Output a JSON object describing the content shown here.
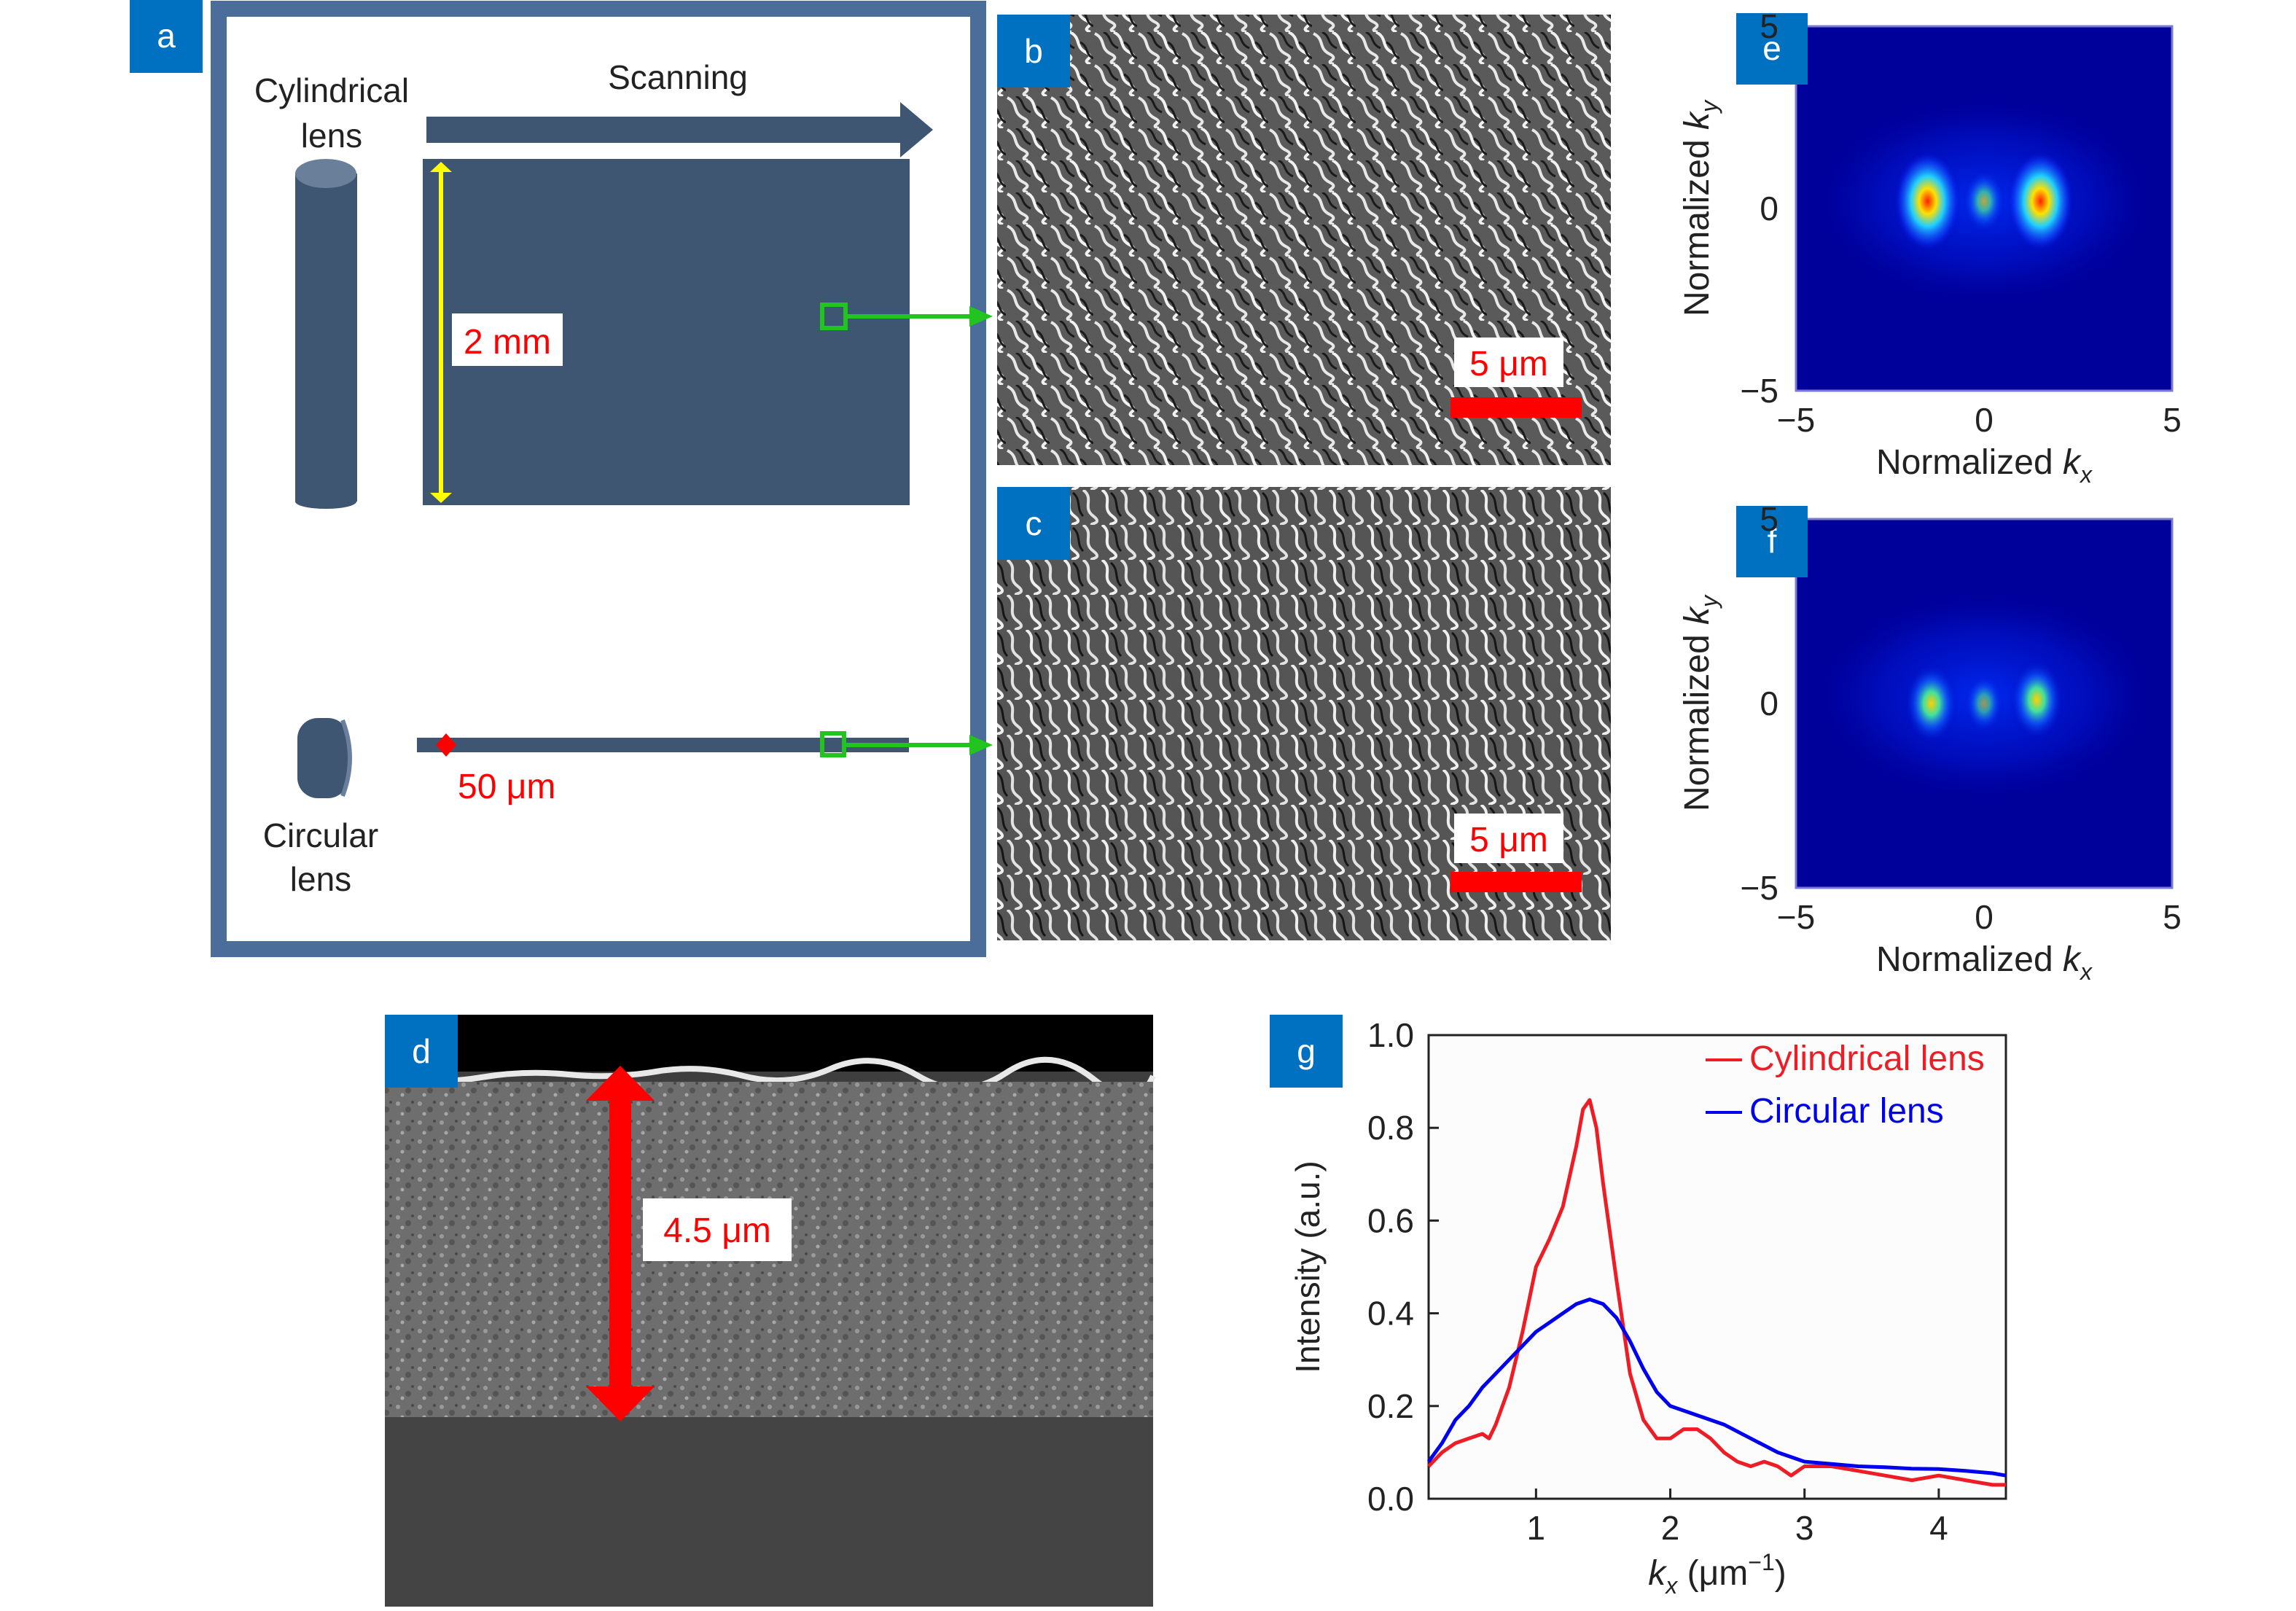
{
  "colors": {
    "panel_tag": "#0070c0",
    "frame": "#4a6d9a",
    "lens": "#3f5673",
    "accent_red": "#ff0000",
    "scan_green": "#22c51e",
    "yellow": "#ffff00",
    "sem_bg": "#8a8a8a",
    "fft_bg": "#00009a",
    "cyl_line": "#ee1c24",
    "circ_line": "#0000ee"
  },
  "panels": {
    "a": {
      "tag": "a",
      "cyl_label": [
        "Cylindrical",
        "lens"
      ],
      "scanning": "Scanning",
      "dim_2mm": "2 mm",
      "dim_50um": "50 μm",
      "circ_label": [
        "Circular",
        "lens"
      ]
    },
    "b": {
      "tag": "b",
      "scalebar": "5 μm"
    },
    "c": {
      "tag": "c",
      "scalebar": "5 μm"
    },
    "d": {
      "tag": "d",
      "depth": "4.5 μm"
    },
    "e": {
      "tag": "e"
    },
    "f": {
      "tag": "f"
    },
    "g": {
      "tag": "g"
    }
  },
  "chart_data": [
    {
      "panel": "e",
      "type": "heatmap",
      "xlabel_text": "Normalized ",
      "xlabel_var": "k",
      "xlabel_sub": "x",
      "ylabel_text": "Normalized ",
      "ylabel_var": "k",
      "ylabel_sub": "y",
      "xlim": [
        -5,
        5
      ],
      "ylim": [
        -5,
        5
      ],
      "x_ticks": [
        {
          "v": -5,
          "t": "−5"
        },
        {
          "v": 0,
          "t": "0"
        },
        {
          "v": 5,
          "t": "5"
        }
      ],
      "y_ticks": [
        {
          "v": 5,
          "t": "5"
        },
        {
          "v": 0,
          "t": "0"
        },
        {
          "v": -5,
          "t": "−5"
        }
      ],
      "peaks": [
        {
          "x": -1.5,
          "y": 0.2,
          "intensity": 1.0
        },
        {
          "x": 1.5,
          "y": 0.2,
          "intensity": 1.0
        },
        {
          "x": 0.0,
          "y": 0.2,
          "intensity": 0.3
        }
      ]
    },
    {
      "panel": "f",
      "type": "heatmap",
      "xlabel_text": "Normalized ",
      "xlabel_var": "k",
      "xlabel_sub": "x",
      "ylabel_text": "Normalized ",
      "ylabel_var": "k",
      "ylabel_sub": "y",
      "xlim": [
        -5,
        5
      ],
      "ylim": [
        -5,
        5
      ],
      "x_ticks": [
        {
          "v": -5,
          "t": "−5"
        },
        {
          "v": 0,
          "t": "0"
        },
        {
          "v": 5,
          "t": "5"
        }
      ],
      "y_ticks": [
        {
          "v": 5,
          "t": "5"
        },
        {
          "v": 0,
          "t": "0"
        },
        {
          "v": -5,
          "t": "−5"
        }
      ],
      "peaks": [
        {
          "x": -1.4,
          "y": 0.0,
          "intensity": 0.6
        },
        {
          "x": 1.4,
          "y": 0.1,
          "intensity": 0.6
        },
        {
          "x": 0.0,
          "y": 0.0,
          "intensity": 0.2
        }
      ]
    },
    {
      "panel": "g",
      "type": "line",
      "xlabel_var": "k",
      "xlabel_sub": "x",
      "xlabel_unit": " (μm",
      "xlabel_sup": "−1",
      "xlabel_close": ")",
      "ylabel": "Intensity (a.u.)",
      "xlim": [
        0.2,
        4.5
      ],
      "ylim": [
        0,
        1.0
      ],
      "x_ticks": [
        {
          "v": 1,
          "t": "1"
        },
        {
          "v": 2,
          "t": "2"
        },
        {
          "v": 3,
          "t": "3"
        },
        {
          "v": 4,
          "t": "4"
        }
      ],
      "y_ticks": [
        {
          "v": 0,
          "t": "0.0"
        },
        {
          "v": 0.2,
          "t": "0.2"
        },
        {
          "v": 0.4,
          "t": "0.4"
        },
        {
          "v": 0.6,
          "t": "0.6"
        },
        {
          "v": 0.8,
          "t": "0.8"
        },
        {
          "v": 1.0,
          "t": "1.0"
        }
      ],
      "legend_position": "top-right",
      "series": [
        {
          "name": "Cylindrical lens",
          "color": "#ee1c24",
          "points": [
            [
              0.2,
              0.07
            ],
            [
              0.3,
              0.1
            ],
            [
              0.4,
              0.12
            ],
            [
              0.5,
              0.13
            ],
            [
              0.6,
              0.14
            ],
            [
              0.65,
              0.13
            ],
            [
              0.7,
              0.16
            ],
            [
              0.8,
              0.24
            ],
            [
              0.9,
              0.36
            ],
            [
              1.0,
              0.5
            ],
            [
              1.1,
              0.56
            ],
            [
              1.2,
              0.63
            ],
            [
              1.3,
              0.76
            ],
            [
              1.35,
              0.84
            ],
            [
              1.4,
              0.86
            ],
            [
              1.45,
              0.8
            ],
            [
              1.5,
              0.68
            ],
            [
              1.6,
              0.47
            ],
            [
              1.7,
              0.27
            ],
            [
              1.8,
              0.17
            ],
            [
              1.9,
              0.13
            ],
            [
              2.0,
              0.13
            ],
            [
              2.1,
              0.15
            ],
            [
              2.2,
              0.15
            ],
            [
              2.3,
              0.13
            ],
            [
              2.4,
              0.1
            ],
            [
              2.5,
              0.08
            ],
            [
              2.6,
              0.07
            ],
            [
              2.7,
              0.08
            ],
            [
              2.8,
              0.07
            ],
            [
              2.9,
              0.05
            ],
            [
              3.0,
              0.07
            ],
            [
              3.2,
              0.07
            ],
            [
              3.4,
              0.06
            ],
            [
              3.6,
              0.05
            ],
            [
              3.8,
              0.04
            ],
            [
              4.0,
              0.05
            ],
            [
              4.2,
              0.04
            ],
            [
              4.4,
              0.03
            ],
            [
              4.5,
              0.03
            ]
          ]
        },
        {
          "name": "Circular lens",
          "color": "#0000ee",
          "points": [
            [
              0.2,
              0.08
            ],
            [
              0.3,
              0.12
            ],
            [
              0.4,
              0.17
            ],
            [
              0.5,
              0.2
            ],
            [
              0.6,
              0.24
            ],
            [
              0.7,
              0.27
            ],
            [
              0.8,
              0.3
            ],
            [
              0.9,
              0.33
            ],
            [
              1.0,
              0.36
            ],
            [
              1.1,
              0.38
            ],
            [
              1.2,
              0.4
            ],
            [
              1.3,
              0.42
            ],
            [
              1.4,
              0.43
            ],
            [
              1.5,
              0.42
            ],
            [
              1.6,
              0.39
            ],
            [
              1.7,
              0.34
            ],
            [
              1.8,
              0.28
            ],
            [
              1.9,
              0.23
            ],
            [
              2.0,
              0.2
            ],
            [
              2.2,
              0.18
            ],
            [
              2.4,
              0.16
            ],
            [
              2.6,
              0.13
            ],
            [
              2.8,
              0.1
            ],
            [
              3.0,
              0.08
            ],
            [
              3.2,
              0.075
            ],
            [
              3.4,
              0.07
            ],
            [
              3.6,
              0.068
            ],
            [
              3.8,
              0.065
            ],
            [
              4.0,
              0.064
            ],
            [
              4.2,
              0.06
            ],
            [
              4.4,
              0.055
            ],
            [
              4.5,
              0.05
            ]
          ]
        }
      ]
    }
  ]
}
